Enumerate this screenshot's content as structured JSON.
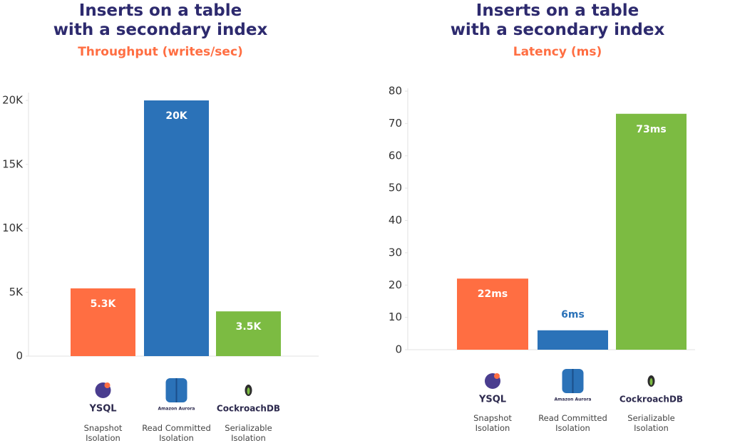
{
  "chart_data": [
    {
      "type": "bar",
      "title": "Inserts on a table\nwith a secondary index",
      "subtitle": "Throughput (writes/sec)",
      "categories": [
        "Snapshot\nIsolation",
        "Read Committed\nIsolation",
        "Serializable\nIsolation"
      ],
      "category_logos": [
        "YSQL",
        "Amazon Aurora",
        "CockroachDB"
      ],
      "values": [
        5300,
        20000,
        3500
      ],
      "value_labels": [
        "5.3K",
        "20K",
        "3.5K"
      ],
      "colors": [
        "#ff6e42",
        "#2b72b8",
        "#7cbb42"
      ],
      "ylim": [
        0,
        20000
      ],
      "yticks": [
        0,
        {
          "value": 5000,
          "label": "5K"
        },
        {
          "value": 10000,
          "label": "10K"
        },
        {
          "value": 15000,
          "label": "15K"
        },
        {
          "value": 20000,
          "label": "20K"
        }
      ]
    },
    {
      "type": "bar",
      "title": "Inserts on a table\nwith a secondary index",
      "subtitle": "Latency (ms)",
      "categories": [
        "Snapshot\nIsolation",
        "Read Committed\nIsolation",
        "Serializable\nIsolation"
      ],
      "category_logos": [
        "YSQL",
        "Amazon Aurora",
        "CockroachDB"
      ],
      "values": [
        22,
        6,
        73
      ],
      "value_labels": [
        "22ms",
        "6ms",
        "73ms"
      ],
      "colors": [
        "#ff6e42",
        "#2b72b8",
        "#7cbb42"
      ],
      "ylim": [
        0,
        80
      ],
      "yticks": [
        0,
        10,
        20,
        30,
        40,
        50,
        60,
        70,
        80
      ]
    }
  ]
}
